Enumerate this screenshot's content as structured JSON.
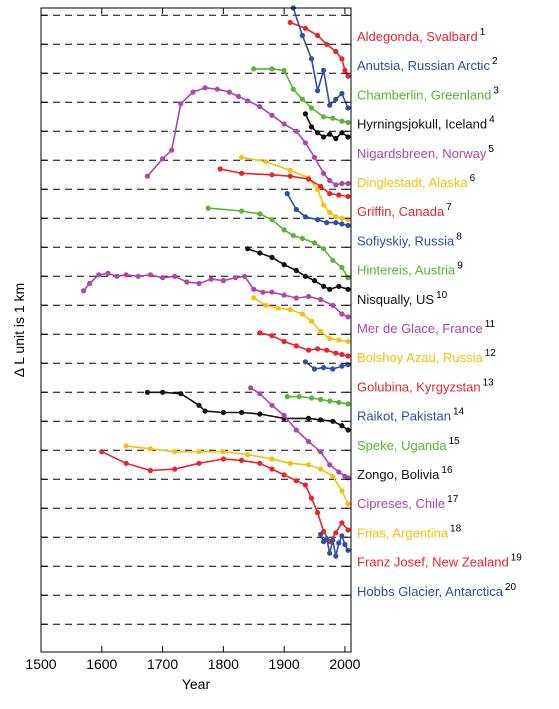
{
  "chart_data": {
    "type": "line",
    "xlabel": "Year",
    "ylabel": "Δ L    unit is 1 km",
    "xlim": [
      1500,
      2010
    ],
    "xticks": [
      1500,
      1600,
      1700,
      1800,
      1900,
      2000
    ],
    "grid": "dashed-horizontal",
    "series": [
      {
        "name": "Aldegonda, Svalbard",
        "note": "1",
        "color": "#e8242b",
        "x": [
          1910,
          1935,
          1955,
          1970,
          1985,
          1995,
          2000,
          2005
        ],
        "y": [
          21.75,
          21.55,
          21.3,
          21.0,
          20.75,
          20.5,
          20.1,
          19.9
        ]
      },
      {
        "name": "Anutsia, Russian Arctic",
        "note": "2",
        "color": "#2e4fa3",
        "x": [
          1915,
          1930,
          1945,
          1955,
          1965,
          1975,
          1985,
          1995,
          2005
        ],
        "y": [
          22.25,
          21.3,
          20.5,
          19.4,
          20.1,
          18.9,
          19.1,
          19.3,
          18.8
        ]
      },
      {
        "name": "Chamberlin, Greenland",
        "note": "3",
        "color": "#5ab534",
        "x": [
          1850,
          1880,
          1900,
          1915,
          1930,
          1945,
          1965,
          1980,
          1995,
          2005
        ],
        "y": [
          20.15,
          20.15,
          20.1,
          19.45,
          19.1,
          18.8,
          18.5,
          18.45,
          18.35,
          18.3
        ]
      },
      {
        "name": "Hyrningsjokull, Iceland",
        "note": "4",
        "color": "#111111",
        "x": [
          1935,
          1945,
          1955,
          1965,
          1975,
          1985,
          1995,
          2005
        ],
        "y": [
          18.6,
          18.15,
          17.95,
          17.8,
          17.9,
          17.75,
          17.95,
          17.8
        ]
      },
      {
        "name": "Nigardsbreen, Norway",
        "note": "5",
        "color": "#b144ad",
        "x": [
          1675,
          1700,
          1715,
          1730,
          1750,
          1770,
          1790,
          1810,
          1825,
          1840,
          1860,
          1880,
          1900,
          1920,
          1935,
          1950,
          1965,
          1975,
          1985,
          1995,
          2005
        ],
        "y": [
          16.45,
          17.05,
          17.35,
          18.95,
          19.35,
          19.5,
          19.45,
          19.35,
          19.2,
          19.05,
          18.85,
          18.55,
          18.25,
          18.0,
          17.6,
          17.1,
          16.55,
          16.3,
          16.15,
          16.2,
          16.2
        ]
      },
      {
        "name": "Dinglestadt, Alaska",
        "note": "6",
        "color": "#f2c20f",
        "x": [
          1830,
          1870,
          1910,
          1940,
          1955,
          1965,
          1975,
          1985,
          1995,
          2005
        ],
        "y": [
          17.1,
          16.95,
          16.65,
          16.4,
          16.0,
          15.45,
          15.2,
          15.05,
          15.0,
          14.95
        ]
      },
      {
        "name": "Griffin, Canada",
        "note": "7",
        "color": "#e8242b",
        "x": [
          1795,
          1830,
          1880,
          1910,
          1940,
          1960,
          1975,
          1990,
          2005
        ],
        "y": [
          16.7,
          16.55,
          16.5,
          16.45,
          16.35,
          16.1,
          15.85,
          15.8,
          15.75
        ]
      },
      {
        "name": "Sofiyskiy, Russia",
        "note": "8",
        "color": "#2e4fa3",
        "x": [
          1905,
          1920,
          1935,
          1955,
          1970,
          1985,
          1995,
          2005
        ],
        "y": [
          15.85,
          15.3,
          15.05,
          14.95,
          14.85,
          14.85,
          14.8,
          14.75
        ]
      },
      {
        "name": "Hintereis, Austria",
        "note": "9",
        "color": "#5ab534",
        "x": [
          1775,
          1830,
          1860,
          1880,
          1900,
          1915,
          1930,
          1950,
          1965,
          1980,
          1995,
          2005
        ],
        "y": [
          15.35,
          15.25,
          15.15,
          14.95,
          14.6,
          14.4,
          14.3,
          14.15,
          13.95,
          13.55,
          13.3,
          12.95
        ]
      },
      {
        "name": "Nisqually, US",
        "note": "10",
        "color": "#111111",
        "x": [
          1840,
          1860,
          1880,
          1900,
          1920,
          1935,
          1950,
          1965,
          1975,
          1990,
          2005
        ],
        "y": [
          13.95,
          13.8,
          13.65,
          13.4,
          13.2,
          13.0,
          12.85,
          12.65,
          12.55,
          12.65,
          12.55
        ]
      },
      {
        "name": "Mer de Glace, France",
        "note": "11",
        "color": "#b144ad",
        "x": [
          1570,
          1580,
          1595,
          1610,
          1625,
          1640,
          1660,
          1680,
          1700,
          1720,
          1740,
          1760,
          1780,
          1800,
          1820,
          1835,
          1850,
          1865,
          1880,
          1900,
          1920,
          1940,
          1960,
          1980,
          1995,
          2005
        ],
        "y": [
          12.5,
          12.75,
          13.05,
          13.1,
          13.0,
          13.05,
          13.0,
          13.05,
          12.95,
          13.0,
          12.8,
          12.75,
          12.9,
          12.85,
          12.95,
          13.0,
          12.55,
          12.45,
          12.45,
          12.35,
          12.25,
          12.3,
          12.2,
          12.0,
          11.7,
          11.6
        ]
      },
      {
        "name": "Bolshoy Azau, Russia",
        "note": "12",
        "color": "#f2c20f",
        "x": [
          1850,
          1870,
          1890,
          1910,
          1930,
          1945,
          1960,
          1975,
          1990,
          2005
        ],
        "y": [
          12.25,
          12.0,
          11.9,
          11.85,
          11.7,
          11.45,
          11.1,
          10.85,
          10.8,
          10.75
        ]
      },
      {
        "name": "Golubina, Kyrgyzstan",
        "note": "13",
        "color": "#e8242b",
        "x": [
          1860,
          1880,
          1900,
          1920,
          1940,
          1955,
          1970,
          1985,
          1995,
          2005
        ],
        "y": [
          11.05,
          10.95,
          10.75,
          10.6,
          10.45,
          10.5,
          10.45,
          10.35,
          10.3,
          10.25
        ]
      },
      {
        "name": "Raikot, Pakistan",
        "note": "14",
        "color": "#2e4fa3",
        "x": [
          1935,
          1950,
          1965,
          1980,
          1995,
          2005
        ],
        "y": [
          10.05,
          9.8,
          9.85,
          9.8,
          9.9,
          9.95
        ]
      },
      {
        "name": "Speke, Uganda",
        "note": "15",
        "color": "#5ab534",
        "x": [
          1905,
          1925,
          1945,
          1960,
          1975,
          1990,
          2005
        ],
        "y": [
          8.85,
          8.85,
          8.8,
          8.75,
          8.7,
          8.65,
          8.6
        ]
      },
      {
        "name": "Zongo, Bolivia",
        "note": "16",
        "color": "#111111",
        "x": [
          1675,
          1700,
          1730,
          1760,
          1770,
          1800,
          1830,
          1860,
          1900,
          1940,
          1960,
          1980,
          1995,
          2005
        ],
        "y": [
          9.0,
          9.0,
          8.95,
          8.55,
          8.35,
          8.3,
          8.3,
          8.25,
          8.1,
          8.1,
          8.05,
          8.0,
          7.85,
          7.7
        ]
      },
      {
        "name": "Cipreses, Chile",
        "note": "17",
        "color": "#b144ad",
        "x": [
          1845,
          1860,
          1880,
          1900,
          1920,
          1940,
          1960,
          1975,
          1990,
          2000,
          2005
        ],
        "y": [
          9.15,
          8.95,
          8.55,
          8.2,
          7.7,
          7.3,
          6.95,
          6.5,
          6.25,
          6.1,
          6.05
        ]
      },
      {
        "name": "Frias, Argentina",
        "note": "18",
        "color": "#f2c20f",
        "x": [
          1640,
          1680,
          1720,
          1760,
          1800,
          1840,
          1880,
          1910,
          1940,
          1960,
          1980,
          1995,
          2005
        ],
        "y": [
          7.15,
          7.05,
          6.95,
          6.95,
          6.95,
          6.85,
          6.7,
          6.55,
          6.5,
          6.35,
          6.1,
          5.6,
          5.15
        ]
      },
      {
        "name": "Franz Josef, New Zealand",
        "note": "19",
        "color": "#e8242b",
        "x": [
          1600,
          1640,
          1680,
          1720,
          1760,
          1800,
          1830,
          1860,
          1880,
          1900,
          1920,
          1935,
          1945,
          1955,
          1965,
          1975,
          1985,
          1995,
          2005
        ],
        "y": [
          6.95,
          6.55,
          6.3,
          6.35,
          6.55,
          6.7,
          6.65,
          6.55,
          6.35,
          6.15,
          5.95,
          5.8,
          5.35,
          4.85,
          4.2,
          3.85,
          4.15,
          4.5,
          4.25
        ]
      },
      {
        "name": "Hobbs Glacier, Antarctica",
        "note": "20",
        "color": "#2e4fa3",
        "x": [
          1960,
          1965,
          1970,
          1975,
          1980,
          1985,
          1990,
          1995,
          2000,
          2005
        ],
        "y": [
          4.1,
          3.85,
          3.95,
          3.45,
          3.9,
          3.35,
          3.8,
          4.05,
          3.75,
          3.55
        ]
      }
    ]
  }
}
